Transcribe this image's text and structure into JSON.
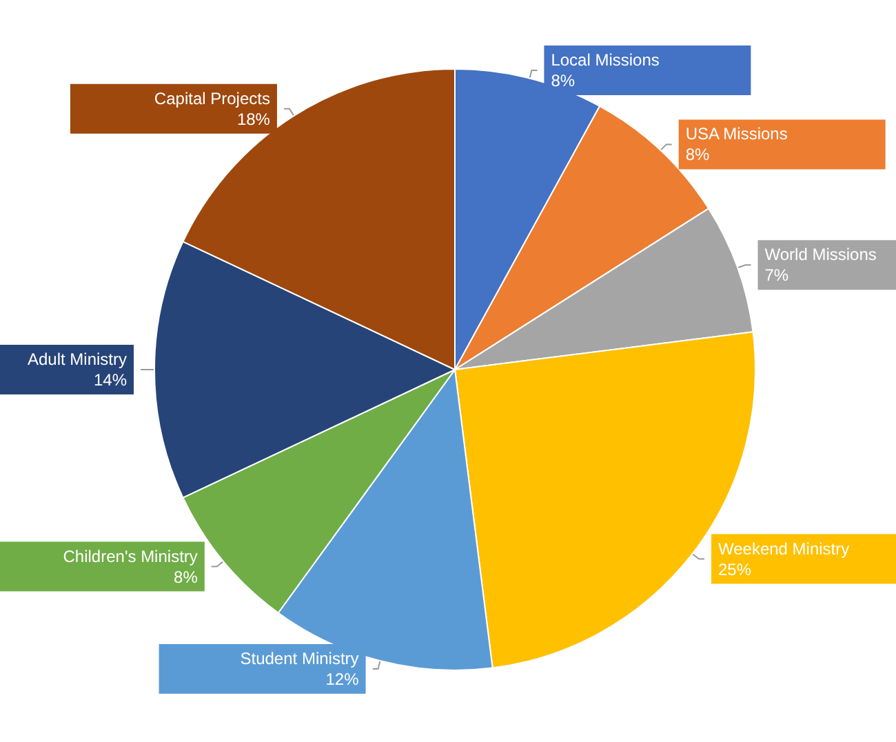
{
  "chart_data": {
    "type": "pie",
    "categories": [
      "Local Missions",
      "USA Missions",
      "World Missions",
      "Weekend Ministry",
      "Student Ministry",
      "Children's Ministry",
      "Adult Ministry",
      "Capital Projects"
    ],
    "values": [
      8,
      8,
      7,
      25,
      12,
      8,
      14,
      18
    ],
    "value_labels": [
      "8%",
      "8%",
      "7%",
      "25%",
      "12%",
      "8%",
      "14%",
      "18%"
    ],
    "colors": [
      "#4472c4",
      "#ed7d31",
      "#a5a5a5",
      "#ffc000",
      "#5b9bd5",
      "#70ad47",
      "#264478",
      "#9e480e"
    ],
    "legend": false
  }
}
